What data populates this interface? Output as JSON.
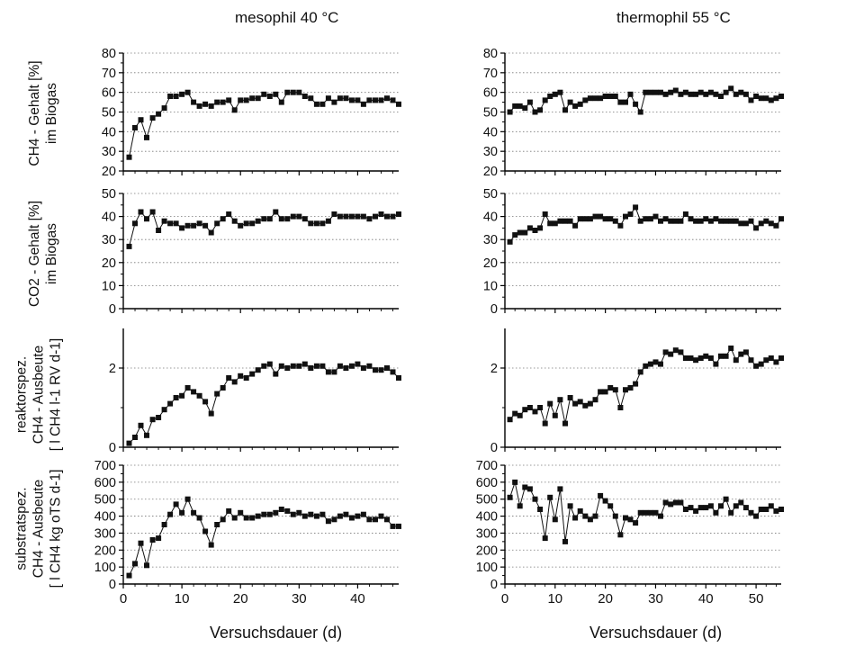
{
  "columns": [
    "mesophil 40 °C",
    "thermophil 55 °C"
  ],
  "xlabel": "Versuchsdauer (d)",
  "ylabels": [
    [
      "CH4 - Gehalt [%]",
      "im Biogas"
    ],
    [
      "CO2 - Gehalt [%]",
      "im Biogas"
    ],
    [
      "reaktorspez.",
      "CH4 - Ausbeute",
      "[ l CH4 l-1 RV d-1]"
    ],
    [
      "substratspez.",
      "CH4 - Ausbeute",
      "[ l CH4 kg oTS d-1]"
    ]
  ],
  "chart_data": [
    {
      "type": "line",
      "column": "mesophil 40 °C",
      "row": 1,
      "xlim": [
        0,
        47
      ],
      "xticks": [
        0,
        10,
        20,
        30,
        40
      ],
      "xtick_labels": [
        "0",
        "10",
        "20",
        "30",
        "40"
      ],
      "ylim": [
        20,
        80
      ],
      "yticks": [
        20,
        30,
        40,
        50,
        60,
        70,
        80
      ],
      "grid": "horizontal dotted",
      "marker": "square",
      "x": [
        1,
        2,
        3,
        4,
        5,
        6,
        7,
        8,
        9,
        10,
        11,
        12,
        13,
        14,
        15,
        16,
        17,
        18,
        19,
        20,
        21,
        22,
        23,
        24,
        25,
        26,
        27,
        28,
        29,
        30,
        31,
        32,
        33,
        34,
        35,
        36,
        37,
        38,
        39,
        40,
        41,
        42,
        43,
        44,
        45,
        46,
        47
      ],
      "y": [
        27,
        42,
        46,
        37,
        47,
        49,
        52,
        58,
        58,
        59,
        60,
        55,
        53,
        54,
        53,
        55,
        55,
        56,
        51,
        56,
        56,
        57,
        57,
        59,
        58,
        59,
        55,
        60,
        60,
        60,
        58,
        57,
        54,
        54,
        57,
        55,
        57,
        57,
        56,
        56,
        54,
        56,
        56,
        56,
        57,
        56,
        54
      ]
    },
    {
      "type": "line",
      "column": "thermophil 55 °C",
      "row": 1,
      "xlim": [
        0,
        55
      ],
      "xticks": [
        0,
        10,
        20,
        30,
        40,
        50
      ],
      "xtick_labels": [
        "0",
        "10",
        "20",
        "30",
        "40",
        "50"
      ],
      "ylim": [
        20,
        80
      ],
      "yticks": [
        20,
        30,
        40,
        50,
        60,
        70,
        80
      ],
      "grid": "horizontal dotted",
      "marker": "square",
      "x": [
        1,
        2,
        3,
        4,
        5,
        6,
        7,
        8,
        9,
        10,
        11,
        12,
        13,
        14,
        15,
        16,
        17,
        18,
        19,
        20,
        21,
        22,
        23,
        24,
        25,
        26,
        27,
        28,
        29,
        30,
        31,
        32,
        33,
        34,
        35,
        36,
        37,
        38,
        39,
        40,
        41,
        42,
        43,
        44,
        45,
        46,
        47,
        48,
        49,
        50,
        51,
        52,
        53,
        54,
        55
      ],
      "y": [
        50,
        53,
        53,
        52,
        55,
        50,
        51,
        56,
        58,
        59,
        60,
        51,
        55,
        53,
        54,
        56,
        57,
        57,
        57,
        58,
        58,
        58,
        55,
        55,
        59,
        54,
        50,
        60,
        60,
        60,
        60,
        59,
        60,
        61,
        59,
        60,
        59,
        59,
        60,
        59,
        60,
        59,
        58,
        60,
        62,
        59,
        60,
        59,
        56,
        58,
        57,
        57,
        56,
        57,
        58
      ]
    },
    {
      "type": "line",
      "column": "mesophil 40 °C",
      "row": 2,
      "xlim": [
        0,
        47
      ],
      "xticks": [
        0,
        10,
        20,
        30,
        40
      ],
      "xtick_labels": [
        "0",
        "10",
        "20",
        "30",
        "40"
      ],
      "ylim": [
        0,
        50
      ],
      "yticks": [
        0,
        10,
        20,
        30,
        40,
        50
      ],
      "grid": "horizontal dotted",
      "marker": "square",
      "x": [
        1,
        2,
        3,
        4,
        5,
        6,
        7,
        8,
        9,
        10,
        11,
        12,
        13,
        14,
        15,
        16,
        17,
        18,
        19,
        20,
        21,
        22,
        23,
        24,
        25,
        26,
        27,
        28,
        29,
        30,
        31,
        32,
        33,
        34,
        35,
        36,
        37,
        38,
        39,
        40,
        41,
        42,
        43,
        44,
        45,
        46,
        47
      ],
      "y": [
        27,
        37,
        42,
        39,
        42,
        34,
        38,
        37,
        37,
        35,
        36,
        36,
        37,
        36,
        33,
        37,
        39,
        41,
        38,
        36,
        37,
        37,
        38,
        39,
        39,
        42,
        39,
        39,
        40,
        40,
        39,
        37,
        37,
        37,
        38,
        41,
        40,
        40,
        40,
        40,
        40,
        39,
        40,
        41,
        40,
        40,
        41
      ]
    },
    {
      "type": "line",
      "column": "thermophil 55 °C",
      "row": 2,
      "xlim": [
        0,
        55
      ],
      "xticks": [
        0,
        10,
        20,
        30,
        40,
        50
      ],
      "xtick_labels": [
        "0",
        "10",
        "20",
        "30",
        "40",
        "50"
      ],
      "ylim": [
        0,
        50
      ],
      "yticks": [
        0,
        10,
        20,
        30,
        40,
        50
      ],
      "grid": "horizontal dotted",
      "marker": "square",
      "x": [
        1,
        2,
        3,
        4,
        5,
        6,
        7,
        8,
        9,
        10,
        11,
        12,
        13,
        14,
        15,
        16,
        17,
        18,
        19,
        20,
        21,
        22,
        23,
        24,
        25,
        26,
        27,
        28,
        29,
        30,
        31,
        32,
        33,
        34,
        35,
        36,
        37,
        38,
        39,
        40,
        41,
        42,
        43,
        44,
        45,
        46,
        47,
        48,
        49,
        50,
        51,
        52,
        53,
        54,
        55
      ],
      "y": [
        29,
        32,
        33,
        33,
        35,
        34,
        35,
        41,
        37,
        37,
        38,
        38,
        38,
        36,
        39,
        39,
        39,
        40,
        40,
        39,
        39,
        38,
        36,
        40,
        41,
        44,
        38,
        39,
        39,
        40,
        38,
        39,
        38,
        38,
        38,
        41,
        39,
        38,
        38,
        39,
        38,
        39,
        38,
        38,
        38,
        38,
        37,
        37,
        38,
        35,
        37,
        38,
        37,
        36,
        39
      ]
    },
    {
      "type": "line",
      "column": "mesophil 40 °C",
      "row": 3,
      "xlim": [
        0,
        47
      ],
      "xticks": [
        0,
        10,
        20,
        30,
        40
      ],
      "xtick_labels": [
        "0",
        "10",
        "20",
        "30",
        "40"
      ],
      "ylim": [
        0,
        3
      ],
      "yticks": [
        0,
        2
      ],
      "minor_yticks": [
        1
      ],
      "grid": "horizontal dotted",
      "marker": "square",
      "x": [
        1,
        2,
        3,
        4,
        5,
        6,
        7,
        8,
        9,
        10,
        11,
        12,
        13,
        14,
        15,
        16,
        17,
        18,
        19,
        20,
        21,
        22,
        23,
        24,
        25,
        26,
        27,
        28,
        29,
        30,
        31,
        32,
        33,
        34,
        35,
        36,
        37,
        38,
        39,
        40,
        41,
        42,
        43,
        44,
        45,
        46,
        47
      ],
      "y": [
        0.1,
        0.25,
        0.55,
        0.3,
        0.7,
        0.75,
        0.95,
        1.1,
        1.25,
        1.3,
        1.5,
        1.4,
        1.3,
        1.15,
        0.85,
        1.35,
        1.5,
        1.75,
        1.65,
        1.8,
        1.75,
        1.85,
        1.95,
        2.05,
        2.1,
        1.85,
        2.05,
        2.0,
        2.05,
        2.05,
        2.1,
        2.0,
        2.05,
        2.05,
        1.9,
        1.9,
        2.05,
        2.0,
        2.05,
        2.1,
        2.0,
        2.05,
        1.95,
        1.95,
        2.0,
        1.9,
        1.75
      ]
    },
    {
      "type": "line",
      "column": "thermophil 55 °C",
      "row": 3,
      "xlim": [
        0,
        55
      ],
      "xticks": [
        0,
        10,
        20,
        30,
        40,
        50
      ],
      "xtick_labels": [
        "0",
        "10",
        "20",
        "30",
        "40",
        "50"
      ],
      "ylim": [
        0,
        3
      ],
      "yticks": [
        0,
        2
      ],
      "minor_yticks": [
        1
      ],
      "grid": "horizontal dotted",
      "marker": "square",
      "x": [
        1,
        2,
        3,
        4,
        5,
        6,
        7,
        8,
        9,
        10,
        11,
        12,
        13,
        14,
        15,
        16,
        17,
        18,
        19,
        20,
        21,
        22,
        23,
        24,
        25,
        26,
        27,
        28,
        29,
        30,
        31,
        32,
        33,
        34,
        35,
        36,
        37,
        38,
        39,
        40,
        41,
        42,
        43,
        44,
        45,
        46,
        47,
        48,
        49,
        50,
        51,
        52,
        53,
        54,
        55
      ],
      "y": [
        0.7,
        0.85,
        0.8,
        0.95,
        1.0,
        0.9,
        1.0,
        0.6,
        1.1,
        0.8,
        1.2,
        0.6,
        1.25,
        1.1,
        1.15,
        1.05,
        1.1,
        1.2,
        1.4,
        1.4,
        1.5,
        1.45,
        1.0,
        1.45,
        1.5,
        1.6,
        1.9,
        2.05,
        2.1,
        2.15,
        2.1,
        2.4,
        2.35,
        2.45,
        2.4,
        2.25,
        2.25,
        2.2,
        2.25,
        2.3,
        2.25,
        2.1,
        2.3,
        2.3,
        2.5,
        2.2,
        2.35,
        2.4,
        2.2,
        2.05,
        2.1,
        2.2,
        2.25,
        2.15,
        2.25
      ]
    },
    {
      "type": "line",
      "column": "mesophil 40 °C",
      "row": 4,
      "xlim": [
        0,
        47
      ],
      "xticks": [
        0,
        10,
        20,
        30,
        40
      ],
      "xtick_labels": [
        "0",
        "10",
        "20",
        "30",
        "40"
      ],
      "ylim": [
        0,
        700
      ],
      "yticks": [
        0,
        100,
        200,
        300,
        400,
        500,
        600,
        700
      ],
      "grid": "horizontal dotted",
      "marker": "square",
      "x": [
        1,
        2,
        3,
        4,
        5,
        6,
        7,
        8,
        9,
        10,
        11,
        12,
        13,
        14,
        15,
        16,
        17,
        18,
        19,
        20,
        21,
        22,
        23,
        24,
        25,
        26,
        27,
        28,
        29,
        30,
        31,
        32,
        33,
        34,
        35,
        36,
        37,
        38,
        39,
        40,
        41,
        42,
        43,
        44,
        45,
        46,
        47
      ],
      "y": [
        50,
        120,
        240,
        110,
        260,
        270,
        350,
        410,
        470,
        420,
        500,
        420,
        390,
        310,
        230,
        350,
        380,
        430,
        390,
        420,
        390,
        390,
        400,
        410,
        410,
        420,
        440,
        430,
        410,
        420,
        400,
        410,
        400,
        410,
        370,
        380,
        400,
        410,
        390,
        400,
        410,
        380,
        380,
        400,
        380,
        340,
        340
      ]
    },
    {
      "type": "line",
      "column": "thermophil 55 °C",
      "row": 4,
      "xlim": [
        0,
        55
      ],
      "xticks": [
        0,
        10,
        20,
        30,
        40,
        50
      ],
      "xtick_labels": [
        "0",
        "10",
        "20",
        "30",
        "40",
        "50"
      ],
      "ylim": [
        0,
        700
      ],
      "yticks": [
        0,
        100,
        200,
        300,
        400,
        500,
        600,
        700
      ],
      "grid": "horizontal dotted",
      "marker": "square",
      "x": [
        1,
        2,
        3,
        4,
        5,
        6,
        7,
        8,
        9,
        10,
        11,
        12,
        13,
        14,
        15,
        16,
        17,
        18,
        19,
        20,
        21,
        22,
        23,
        24,
        25,
        26,
        27,
        28,
        29,
        30,
        31,
        32,
        33,
        34,
        35,
        36,
        37,
        38,
        39,
        40,
        41,
        42,
        43,
        44,
        45,
        46,
        47,
        48,
        49,
        50,
        51,
        52,
        53,
        54,
        55
      ],
      "y": [
        510,
        600,
        460,
        570,
        560,
        500,
        440,
        270,
        510,
        380,
        560,
        250,
        460,
        390,
        430,
        400,
        380,
        400,
        520,
        490,
        460,
        400,
        290,
        390,
        380,
        360,
        420,
        420,
        420,
        420,
        400,
        480,
        470,
        480,
        480,
        440,
        450,
        430,
        450,
        450,
        460,
        420,
        460,
        500,
        420,
        460,
        480,
        450,
        420,
        400,
        440,
        440,
        460,
        430,
        440
      ]
    }
  ]
}
